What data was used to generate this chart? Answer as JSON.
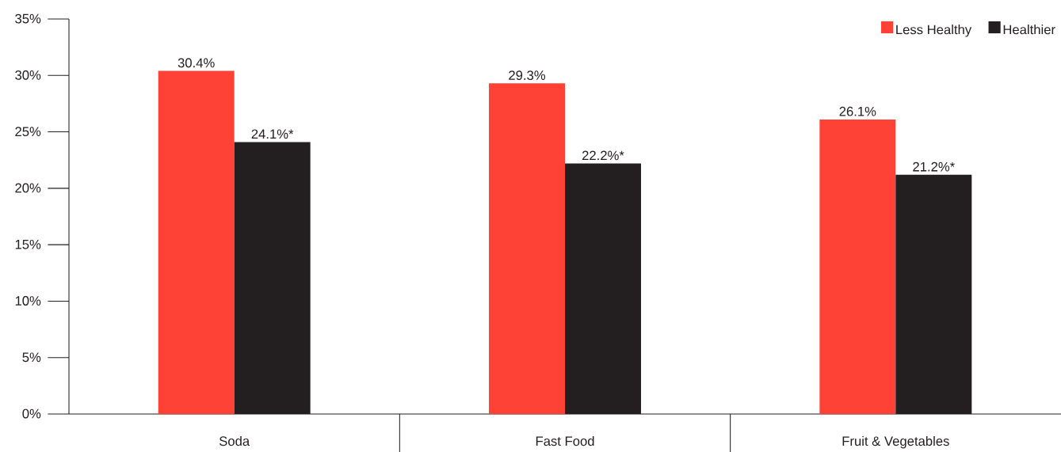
{
  "chart_data": {
    "type": "bar",
    "categories": [
      "Soda",
      "Fast Food",
      "Fruit & Vegetables"
    ],
    "series": [
      {
        "name": "Less Healthy",
        "color": "#ff4136",
        "values": [
          30.4,
          29.3,
          26.1
        ],
        "value_labels": [
          "30.4%",
          "29.3%",
          "26.1%"
        ]
      },
      {
        "name": "Healthier",
        "color": "#231f20",
        "values": [
          24.1,
          22.2,
          21.2
        ],
        "value_labels": [
          "24.1%*",
          "22.2%*",
          "21.2%*"
        ]
      }
    ],
    "ylim": [
      0,
      35
    ],
    "yticks": [
      {
        "value": 0,
        "label": "0%"
      },
      {
        "value": 5,
        "label": "5%"
      },
      {
        "value": 10,
        "label": "10%"
      },
      {
        "value": 15,
        "label": "15%"
      },
      {
        "value": 20,
        "label": "20%"
      },
      {
        "value": 25,
        "label": "25%"
      },
      {
        "value": 30,
        "label": "30%"
      },
      {
        "value": 35,
        "label": "35%"
      }
    ],
    "legend": "top right",
    "grid": false
  }
}
